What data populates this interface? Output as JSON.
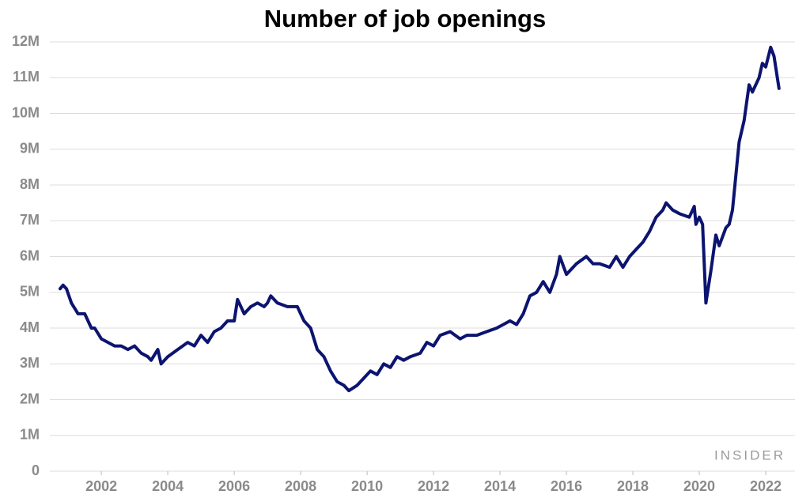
{
  "chart_data": {
    "type": "line",
    "title": "Number of job openings",
    "logo": "INSIDER",
    "series": [
      {
        "name": "Job openings",
        "color": "#0c1470",
        "x": [
          2000.76,
          2000.85,
          2000.95,
          2001.1,
          2001.3,
          2001.5,
          2001.7,
          2001.8,
          2002.0,
          2002.2,
          2002.4,
          2002.6,
          2002.8,
          2003.0,
          2003.2,
          2003.4,
          2003.5,
          2003.7,
          2003.8,
          2004.0,
          2004.3,
          2004.6,
          2004.8,
          2005.0,
          2005.2,
          2005.4,
          2005.6,
          2005.8,
          2006.0,
          2006.1,
          2006.3,
          2006.5,
          2006.7,
          2006.9,
          2007.0,
          2007.1,
          2007.3,
          2007.6,
          2007.9,
          2008.1,
          2008.3,
          2008.5,
          2008.7,
          2008.9,
          2009.1,
          2009.3,
          2009.45,
          2009.7,
          2009.9,
          2010.1,
          2010.3,
          2010.5,
          2010.7,
          2010.9,
          2011.1,
          2011.3,
          2011.6,
          2011.8,
          2012.0,
          2012.2,
          2012.5,
          2012.8,
          2013.0,
          2013.3,
          2013.6,
          2013.9,
          2014.1,
          2014.3,
          2014.5,
          2014.7,
          2014.9,
          2015.1,
          2015.3,
          2015.5,
          2015.7,
          2015.8,
          2016.0,
          2016.3,
          2016.6,
          2016.8,
          2017.0,
          2017.3,
          2017.5,
          2017.7,
          2017.9,
          2018.1,
          2018.3,
          2018.5,
          2018.7,
          2018.9,
          2019.0,
          2019.2,
          2019.4,
          2019.7,
          2019.85,
          2019.9,
          2020.0,
          2020.1,
          2020.2,
          2020.35,
          2020.5,
          2020.6,
          2020.8,
          2020.9,
          2021.0,
          2021.2,
          2021.35,
          2021.5,
          2021.6,
          2021.8,
          2021.9,
          2022.0,
          2022.15,
          2022.25,
          2022.4
        ],
        "values": [
          5.1,
          5.2,
          5.1,
          4.7,
          4.4,
          4.4,
          4.0,
          4.0,
          3.7,
          3.6,
          3.5,
          3.5,
          3.4,
          3.5,
          3.3,
          3.2,
          3.1,
          3.4,
          3.0,
          3.2,
          3.4,
          3.6,
          3.5,
          3.8,
          3.6,
          3.9,
          4.0,
          4.2,
          4.2,
          4.8,
          4.4,
          4.6,
          4.7,
          4.6,
          4.7,
          4.9,
          4.7,
          4.6,
          4.6,
          4.2,
          4.0,
          3.4,
          3.2,
          2.8,
          2.5,
          2.4,
          2.25,
          2.4,
          2.6,
          2.8,
          2.7,
          3.0,
          2.9,
          3.2,
          3.1,
          3.2,
          3.3,
          3.6,
          3.5,
          3.8,
          3.9,
          3.7,
          3.8,
          3.8,
          3.9,
          4.0,
          4.1,
          4.2,
          4.1,
          4.4,
          4.9,
          5.0,
          5.3,
          5.0,
          5.5,
          6.0,
          5.5,
          5.8,
          6.0,
          5.8,
          5.8,
          5.7,
          6.0,
          5.7,
          6.0,
          6.2,
          6.4,
          6.7,
          7.1,
          7.3,
          7.5,
          7.3,
          7.2,
          7.1,
          7.4,
          6.9,
          7.1,
          6.9,
          4.7,
          5.6,
          6.6,
          6.3,
          6.8,
          6.9,
          7.3,
          9.2,
          9.8,
          10.8,
          10.6,
          11.0,
          11.4,
          11.3,
          11.85,
          11.6,
          10.7
        ]
      }
    ],
    "xlim": [
      2000.45,
      2022.88
    ],
    "xticks": [
      2002,
      2004,
      2006,
      2008,
      2010,
      2012,
      2014,
      2016,
      2018,
      2020,
      2022
    ],
    "ylim": [
      0,
      12
    ],
    "yticks": [
      0,
      {
        "value": 1,
        "label": "1M"
      },
      {
        "value": 2,
        "label": "2M"
      },
      {
        "value": 3,
        "label": "3M"
      },
      {
        "value": 4,
        "label": "4M"
      },
      {
        "value": 5,
        "label": "5M"
      },
      {
        "value": 6,
        "label": "6M"
      },
      {
        "value": 7,
        "label": "7M"
      },
      {
        "value": 8,
        "label": "8M"
      },
      {
        "value": 9,
        "label": "9M"
      },
      {
        "value": 10,
        "label": "10M"
      },
      {
        "value": 11,
        "label": "11M"
      },
      {
        "value": 12,
        "label": "12M"
      }
    ],
    "grid": true
  }
}
